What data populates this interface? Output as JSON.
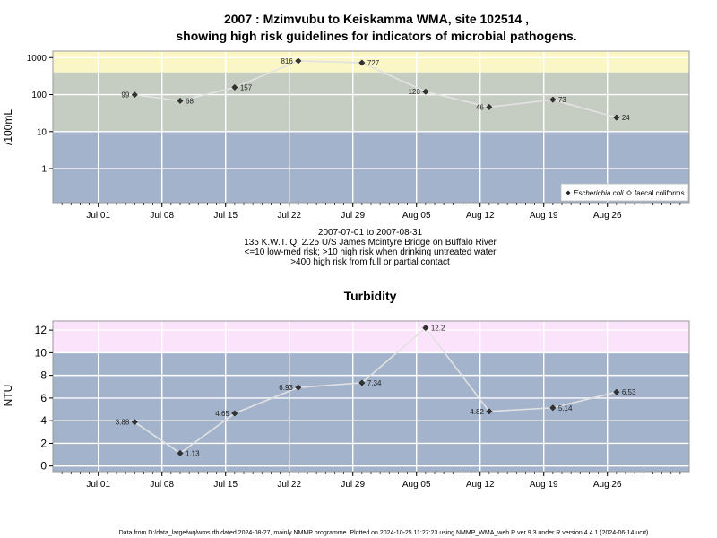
{
  "chart_data": [
    {
      "type": "line",
      "title_line1": "2007 : Mzimvubu to Keiskamma WMA, site 102514 ,",
      "title_line2": "showing high risk guidelines for indicators of microbial pathogens.",
      "ylabel": "/100mL",
      "yscale": "log",
      "yticks": [
        "1",
        "10",
        "100",
        "1000"
      ],
      "ylim": [
        0.12,
        1500
      ],
      "xlim": [
        "2007-06-26",
        "2007-09-04"
      ],
      "xticks": [
        {
          "date": "2007-07-01",
          "label": "Jul 01"
        },
        {
          "date": "2007-07-08",
          "label": "Jul 08"
        },
        {
          "date": "2007-07-15",
          "label": "Jul 15"
        },
        {
          "date": "2007-07-22",
          "label": "Jul 22"
        },
        {
          "date": "2007-07-29",
          "label": "Jul 29"
        },
        {
          "date": "2007-08-05",
          "label": "Aug 05"
        },
        {
          "date": "2007-08-12",
          "label": "Aug 12"
        },
        {
          "date": "2007-08-19",
          "label": "Aug 19"
        },
        {
          "date": "2007-08-26",
          "label": "Aug 26"
        }
      ],
      "bands": [
        {
          "from": 0.12,
          "to": 10,
          "color": "#a3b3cb"
        },
        {
          "from": 10,
          "to": 400,
          "color": "#c5cdc2"
        },
        {
          "from": 400,
          "to": 1500,
          "color": "#fbf6c6"
        }
      ],
      "series": [
        {
          "name": "Escherichia coli",
          "points": [
            {
              "date": "2007-07-05",
              "value": 99,
              "label": "99",
              "side": "left"
            },
            {
              "date": "2007-07-10",
              "value": 68,
              "label": "68",
              "side": "right"
            },
            {
              "date": "2007-07-16",
              "value": 157,
              "label": "157",
              "side": "right"
            },
            {
              "date": "2007-07-23",
              "value": 816,
              "label": "816",
              "side": "left"
            },
            {
              "date": "2007-07-30",
              "value": 727,
              "label": "727",
              "side": "right"
            },
            {
              "date": "2007-08-06",
              "value": 120,
              "label": "120",
              "side": "left"
            },
            {
              "date": "2007-08-13",
              "value": 46,
              "label": "46",
              "side": "left"
            },
            {
              "date": "2007-08-20",
              "value": 73,
              "label": "73",
              "side": "right"
            },
            {
              "date": "2007-08-27",
              "value": 24,
              "label": "24",
              "side": "right"
            }
          ]
        }
      ],
      "legend": {
        "position": "bottom-right",
        "items": [
          {
            "label": "Escherichia coli",
            "marker": "filled-diamond",
            "italic": true
          },
          {
            "label": "faecal coliforms",
            "marker": "open-diamond",
            "italic": false
          }
        ]
      },
      "notes": [
        "2007-07-01 to 2007-08-31",
        "135 K.W.T. Q. 2.25 U/S James Mcintyre Bridge on Buffalo River",
        "<=10 low-med risk; >10 high risk when drinking untreated water",
        ">400 high risk from full or partial contact"
      ]
    },
    {
      "type": "line",
      "title": "Turbidity",
      "ylabel": "NTU",
      "yscale": "linear",
      "yticks": [
        "0",
        "2",
        "4",
        "6",
        "8",
        "10",
        "12"
      ],
      "ylim": [
        -0.5,
        12.8
      ],
      "xlim": [
        "2007-06-26",
        "2007-09-04"
      ],
      "bands": [
        {
          "from": -0.5,
          "to": 10,
          "color": "#a3b3cb"
        },
        {
          "from": 10,
          "to": 12.8,
          "color": "#fce3fc"
        }
      ],
      "series": [
        {
          "name": "",
          "points": [
            {
              "date": "2007-07-05",
              "value": 3.88,
              "label": "3.88",
              "side": "left"
            },
            {
              "date": "2007-07-10",
              "value": 1.13,
              "label": "1.13",
              "side": "right"
            },
            {
              "date": "2007-07-16",
              "value": 4.65,
              "label": "4.65",
              "side": "left"
            },
            {
              "date": "2007-07-23",
              "value": 6.93,
              "label": "6.93",
              "side": "left"
            },
            {
              "date": "2007-07-30",
              "value": 7.34,
              "label": "7.34",
              "side": "right"
            },
            {
              "date": "2007-08-06",
              "value": 12.2,
              "label": "12.2",
              "side": "right"
            },
            {
              "date": "2007-08-13",
              "value": 4.82,
              "label": "4.82",
              "side": "left"
            },
            {
              "date": "2007-08-20",
              "value": 5.14,
              "label": "5.14",
              "side": "right"
            },
            {
              "date": "2007-08-27",
              "value": 6.53,
              "label": "6.53",
              "side": "right"
            }
          ]
        }
      ]
    }
  ],
  "footer": "Data from D:/data_large/wq/wms.db dated 2024-08-27, mainly NMMP programme. Plotted on 2024-10-25 11:27:23 using NMMP_WMA_web.R ver 9.3 under R version 4.4.1 (2024-06-14 ucrt)"
}
